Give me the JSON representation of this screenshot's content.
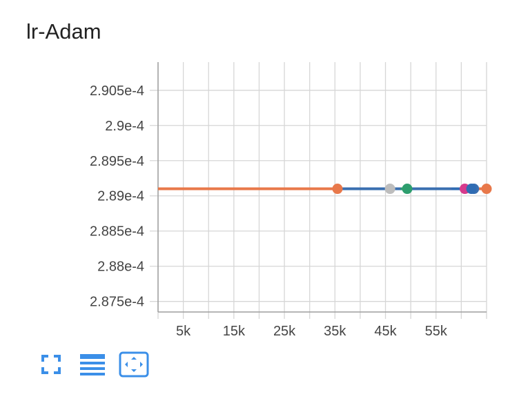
{
  "card": {
    "title": "lr-Adam"
  },
  "accent_color": "#3b8fe8",
  "toolbar": {
    "buttons": [
      {
        "name": "fullscreen-icon"
      },
      {
        "name": "data-table-icon"
      },
      {
        "name": "fit-domain-icon"
      }
    ]
  },
  "chart_data": {
    "type": "line",
    "title": "lr-Adam",
    "x_ticks": [
      5000,
      15000,
      25000,
      35000,
      45000,
      55000
    ],
    "x_tick_labels": [
      "5k",
      "15k",
      "25k",
      "35k",
      "45k",
      "55k"
    ],
    "xlim": [
      0,
      65000
    ],
    "y_ticks": [
      0.0002875,
      0.000288,
      0.0002885,
      0.000289,
      0.0002895,
      0.00029,
      0.0002905
    ],
    "y_tick_labels": [
      "2.875e-4",
      "2.88e-4",
      "2.885e-4",
      "2.89e-4",
      "2.895e-4",
      "2.9e-4",
      "2.905e-4"
    ],
    "ylim": [
      0.00028735,
      0.0002909
    ],
    "grid": true,
    "series": [
      {
        "color": "#3a6fb0",
        "x": [
          35500,
          62500
        ],
        "y": [
          0.0002891,
          0.0002891
        ],
        "marker_end": true
      },
      {
        "color": "#bdbdbd",
        "x": [
          45000,
          45900
        ],
        "y": [
          0.0002891,
          0.0002891
        ],
        "marker_end": true
      },
      {
        "color": "#2e9e6e",
        "x": [
          48000,
          49300
        ],
        "y": [
          0.0002891,
          0.0002891
        ],
        "marker_end": true
      },
      {
        "color": "#d63a8c",
        "x": [
          58000,
          60700
        ],
        "y": [
          0.0002891,
          0.0002891
        ],
        "marker_end": true
      },
      {
        "color": "#2f6cb3",
        "x": [
          58000,
          62000
        ],
        "y": [
          0.0002891,
          0.0002891
        ],
        "marker_end": true
      },
      {
        "color": "#e8784a",
        "x": [
          0,
          35500
        ],
        "y": [
          0.0002891,
          0.0002891
        ],
        "marker_end": true
      },
      {
        "color": "#e8784a",
        "x": [
          62500,
          65000
        ],
        "y": [
          0.0002891,
          0.0002891
        ],
        "marker_end": true
      }
    ]
  }
}
